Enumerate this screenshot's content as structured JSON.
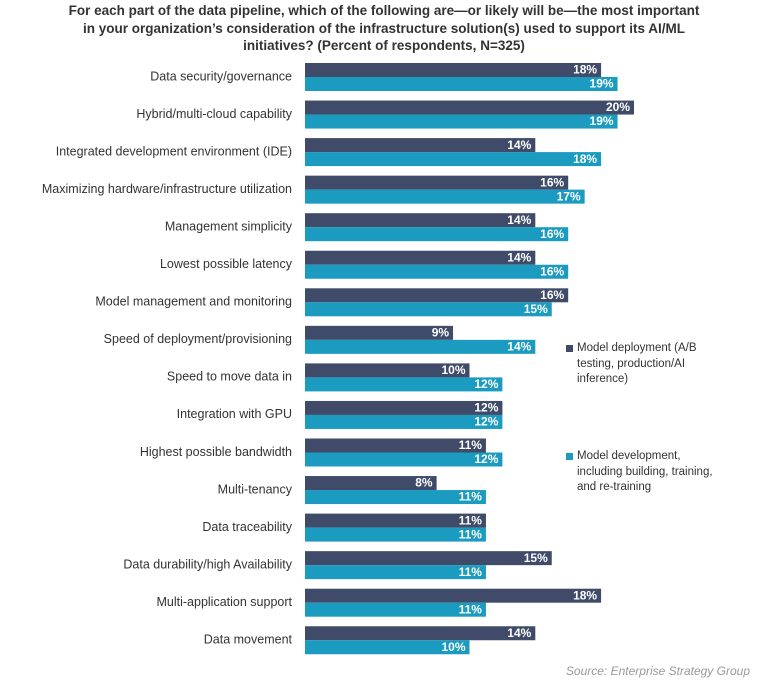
{
  "chart_data": {
    "type": "bar",
    "orientation": "horizontal",
    "title": "For each part of the data pipeline, which of the following are—or likely will be—the most important in your organization’s consideration of the infrastructure solution(s) used to support its AI/ML initiatives? (Percent of respondents, N=325)",
    "source": "Source: Enterprise Strategy Group",
    "categories": [
      "Data security/governance",
      "Hybrid/multi-cloud capability",
      "Integrated development environment (IDE)",
      "Maximizing hardware/infrastructure utilization",
      "Management simplicity",
      "Lowest possible latency",
      "Model management and monitoring",
      "Speed of deployment/provisioning",
      "Speed to move data in",
      "Integration with GPU",
      "Highest possible bandwidth",
      "Multi-tenancy",
      "Data traceability",
      "Data durability/high Availability",
      "Multi-application support",
      "Data movement"
    ],
    "series": [
      {
        "name": "Model deployment (A/B testing, production/AI inference)",
        "color": "#3f4b68",
        "values": [
          18,
          20,
          14,
          16,
          14,
          14,
          16,
          9,
          10,
          12,
          11,
          8,
          11,
          15,
          18,
          14
        ],
        "value_labels": [
          "18%",
          "20%",
          "14%",
          "16%",
          "14%",
          "14%",
          "16%",
          "9%",
          "10%",
          "12%",
          "11%",
          "8%",
          "11%",
          "15%",
          "18%",
          "14%"
        ]
      },
      {
        "name": "Model development, including building, training, and re-training",
        "color": "#1b9bc0",
        "values": [
          19,
          19,
          18,
          17,
          16,
          16,
          15,
          14,
          12,
          12,
          12,
          11,
          11,
          11,
          11,
          10
        ],
        "value_labels": [
          "19%",
          "19%",
          "18%",
          "17%",
          "16%",
          "16%",
          "15%",
          "14%",
          "12%",
          "12%",
          "12%",
          "11%",
          "11%",
          "11%",
          "11%",
          "10%"
        ]
      }
    ]
  }
}
